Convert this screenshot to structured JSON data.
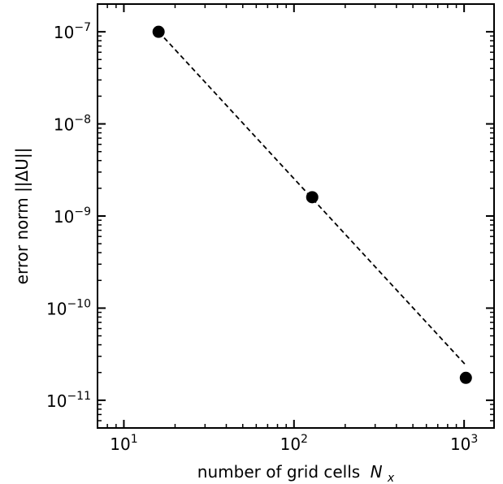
{
  "chart_data": {
    "type": "scatter",
    "title": "",
    "xlabel": "number of grid cells",
    "xlabel_symbol": "N",
    "xlabel_subscript": "x",
    "ylabel": "error norm ||ΔU||",
    "xscale": "log",
    "yscale": "log",
    "xlim": [
      7,
      1500
    ],
    "ylim": [
      5e-12,
      2e-07
    ],
    "x_ticks": [
      {
        "value": 10,
        "base": "10",
        "exp": "1"
      },
      {
        "value": 100,
        "base": "10",
        "exp": "2"
      },
      {
        "value": 1000,
        "base": "10",
        "exp": "3"
      }
    ],
    "y_ticks": [
      {
        "value": 1e-07,
        "base": "10",
        "exp": "−7"
      },
      {
        "value": 1e-08,
        "base": "10",
        "exp": "−8"
      },
      {
        "value": 1e-09,
        "base": "10",
        "exp": "−9"
      },
      {
        "value": 1e-10,
        "base": "10",
        "exp": "−10"
      },
      {
        "value": 1e-11,
        "base": "10",
        "exp": "−11"
      }
    ],
    "points": [
      {
        "x": 16,
        "y": 1e-07
      },
      {
        "x": 128,
        "y": 1.6e-09
      },
      {
        "x": 1024,
        "y": 1.75e-11
      }
    ],
    "fit_line": {
      "style": "dashed",
      "x": [
        16,
        1024
      ],
      "y": [
        1e-07,
        2.4e-11
      ]
    },
    "grid": false,
    "colors": {
      "marker": "#000000",
      "line": "#000000",
      "axes": "#000000"
    }
  }
}
